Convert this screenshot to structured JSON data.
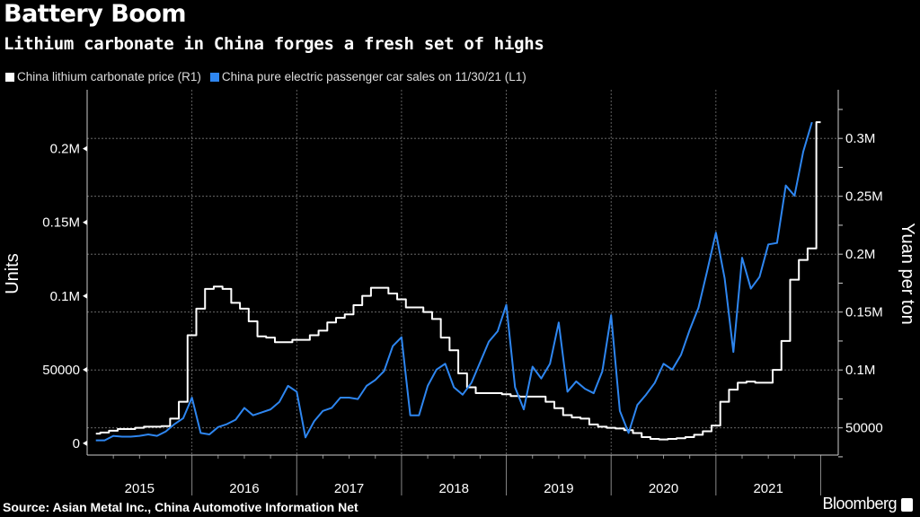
{
  "header": {
    "title": "Battery Boom",
    "subtitle": "Lithium carbonate in China forges a fresh set of highs"
  },
  "footer": {
    "source": "Source: Asian Metal Inc., China Automotive Information Net",
    "brand": "Bloomberg"
  },
  "chart_data": {
    "type": "line",
    "title": "Battery Boom",
    "subtitle": "Lithium carbonate in China forges a fresh set of highs",
    "legend_position": "top-left",
    "grid": true,
    "x_ticks": [
      "2015",
      "2016",
      "2017",
      "2018",
      "2019",
      "2020",
      "2021"
    ],
    "x_range": [
      "2015-01",
      "2021-12"
    ],
    "left_axis": {
      "label": "Units",
      "range": [
        -8000,
        240000
      ],
      "ticks": [
        0,
        50000,
        100000,
        150000,
        200000
      ],
      "tick_labels": [
        "0",
        "50000",
        "0.1M",
        "0.15M",
        "0.2M"
      ]
    },
    "right_axis": {
      "label": "Yuan per ton",
      "range": [
        26500,
        342000
      ],
      "ticks": [
        50000,
        100000,
        150000,
        200000,
        250000,
        300000
      ],
      "tick_labels": [
        "50000",
        "0.1M",
        "0.15M",
        "0.2M",
        "0.25M",
        "0.3M"
      ]
    },
    "series": [
      {
        "name": "China lithium carbonate price (R1)",
        "axis": "right",
        "color": "#ffffff",
        "x": [
          "2015-01",
          "2015-02",
          "2015-03",
          "2015-04",
          "2015-05",
          "2015-06",
          "2015-07",
          "2015-08",
          "2015-09",
          "2015-10",
          "2015-11",
          "2015-12",
          "2016-01",
          "2016-02",
          "2016-03",
          "2016-04",
          "2016-05",
          "2016-06",
          "2016-07",
          "2016-08",
          "2016-09",
          "2016-10",
          "2016-11",
          "2016-12",
          "2017-01",
          "2017-02",
          "2017-03",
          "2017-04",
          "2017-05",
          "2017-06",
          "2017-07",
          "2017-08",
          "2017-09",
          "2017-10",
          "2017-11",
          "2017-12",
          "2018-01",
          "2018-02",
          "2018-03",
          "2018-04",
          "2018-05",
          "2018-06",
          "2018-07",
          "2018-08",
          "2018-09",
          "2018-10",
          "2018-11",
          "2018-12",
          "2019-01",
          "2019-02",
          "2019-03",
          "2019-04",
          "2019-05",
          "2019-06",
          "2019-07",
          "2019-08",
          "2019-09",
          "2019-10",
          "2019-11",
          "2019-12",
          "2020-01",
          "2020-02",
          "2020-03",
          "2020-04",
          "2020-05",
          "2020-06",
          "2020-07",
          "2020-08",
          "2020-09",
          "2020-10",
          "2020-11",
          "2020-12",
          "2021-01",
          "2021-02",
          "2021-03",
          "2021-04",
          "2021-05",
          "2021-06",
          "2021-07",
          "2021-08",
          "2021-09",
          "2021-10",
          "2021-11",
          "2021-12"
        ],
        "values": [
          45000,
          46000,
          47500,
          49000,
          49000,
          50000,
          51000,
          51000,
          51500,
          58000,
          72500,
          130000,
          153000,
          170000,
          172000,
          170000,
          158000,
          153000,
          142000,
          129000,
          128000,
          124000,
          124000,
          126000,
          126000,
          130000,
          134000,
          141000,
          145000,
          148000,
          156000,
          164000,
          171000,
          171000,
          166000,
          161000,
          154000,
          154000,
          150000,
          144000,
          128000,
          117000,
          97000,
          85000,
          80000,
          80000,
          80000,
          79000,
          77500,
          77000,
          77000,
          77000,
          72500,
          67000,
          61000,
          59000,
          58000,
          53000,
          51000,
          50000,
          49500,
          48000,
          45500,
          42000,
          40500,
          40000,
          40500,
          41000,
          42000,
          44000,
          47000,
          52000,
          72500,
          83000,
          89000,
          90000,
          89000,
          89000,
          100000,
          125000,
          178000,
          195000,
          205000,
          314000
        ]
      },
      {
        "name": "China pure electric passenger car sales on 11/30/21 (L1)",
        "axis": "left",
        "color": "#2e86f0",
        "x": [
          "2015-01",
          "2015-02",
          "2015-03",
          "2015-04",
          "2015-05",
          "2015-06",
          "2015-07",
          "2015-08",
          "2015-09",
          "2015-10",
          "2015-11",
          "2015-12",
          "2016-01",
          "2016-02",
          "2016-03",
          "2016-04",
          "2016-05",
          "2016-06",
          "2016-07",
          "2016-08",
          "2016-09",
          "2016-10",
          "2016-11",
          "2016-12",
          "2017-01",
          "2017-02",
          "2017-03",
          "2017-04",
          "2017-05",
          "2017-06",
          "2017-07",
          "2017-08",
          "2017-09",
          "2017-10",
          "2017-11",
          "2017-12",
          "2018-01",
          "2018-02",
          "2018-03",
          "2018-04",
          "2018-05",
          "2018-06",
          "2018-07",
          "2018-08",
          "2018-09",
          "2018-10",
          "2018-11",
          "2018-12",
          "2019-01",
          "2019-02",
          "2019-03",
          "2019-04",
          "2019-05",
          "2019-06",
          "2019-07",
          "2019-08",
          "2019-09",
          "2019-10",
          "2019-11",
          "2019-12",
          "2020-01",
          "2020-02",
          "2020-03",
          "2020-04",
          "2020-05",
          "2020-06",
          "2020-07",
          "2020-08",
          "2020-09",
          "2020-10",
          "2020-11",
          "2020-12",
          "2021-01",
          "2021-02",
          "2021-03",
          "2021-04",
          "2021-05",
          "2021-06",
          "2021-07",
          "2021-08",
          "2021-09",
          "2021-10",
          "2021-11"
        ],
        "values": [
          2000,
          2000,
          5000,
          4500,
          4500,
          5000,
          6000,
          5000,
          8000,
          13000,
          17000,
          31000,
          7000,
          6000,
          11000,
          13000,
          16000,
          24000,
          19000,
          21000,
          23000,
          28000,
          39000,
          35000,
          4000,
          15000,
          22000,
          24000,
          31000,
          31000,
          30000,
          39000,
          43000,
          49000,
          66000,
          72000,
          19000,
          19000,
          39000,
          50000,
          54000,
          38000,
          33000,
          41000,
          55000,
          69000,
          76000,
          94000,
          38000,
          23000,
          52000,
          44000,
          54000,
          82000,
          35000,
          42000,
          37000,
          34000,
          49000,
          87000,
          22000,
          7000,
          26000,
          33000,
          41000,
          54000,
          50000,
          60000,
          77000,
          92000,
          117000,
          143000,
          112000,
          62000,
          126000,
          105000,
          113000,
          135000,
          136000,
          175000,
          168000,
          198000,
          218000
        ]
      }
    ]
  }
}
